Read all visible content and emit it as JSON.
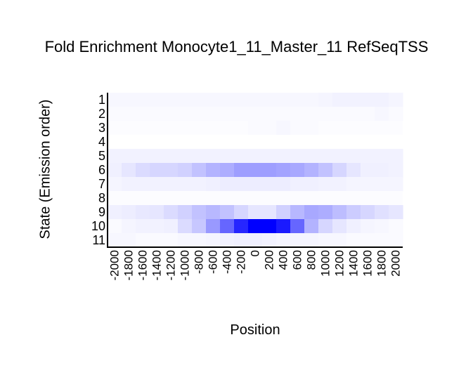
{
  "chart_data": {
    "type": "heatmap",
    "title": "Fold Enrichment Monocyte1_11_Master_11 RefSeqTSS",
    "xlabel": "Position",
    "ylabel": "State (Emission order)",
    "x_ticks": [
      "-2000",
      "-1800",
      "-1600",
      "-1400",
      "-1200",
      "-1000",
      "-800",
      "-600",
      "-400",
      "-200",
      "0",
      "200",
      "400",
      "600",
      "800",
      "1000",
      "1200",
      "1400",
      "1600",
      "1800",
      "2000"
    ],
    "y_ticks": [
      "1",
      "2",
      "3",
      "4",
      "5",
      "6",
      "7",
      "8",
      "9",
      "10",
      "11"
    ],
    "color_low": "#ffffff",
    "color_high": "#0000ff",
    "values": [
      [
        0.03,
        0.03,
        0.03,
        0.03,
        0.03,
        0.03,
        0.03,
        0.03,
        0.03,
        0.03,
        0.03,
        0.03,
        0.03,
        0.03,
        0.03,
        0.04,
        0.05,
        0.05,
        0.05,
        0.05,
        0.04
      ],
      [
        0.02,
        0.02,
        0.02,
        0.02,
        0.02,
        0.02,
        0.02,
        0.02,
        0.02,
        0.02,
        0.02,
        0.02,
        0.02,
        0.02,
        0.02,
        0.02,
        0.02,
        0.02,
        0.02,
        0.03,
        0.02
      ],
      [
        0.01,
        0.01,
        0.01,
        0.01,
        0.01,
        0.01,
        0.01,
        0.01,
        0.01,
        0.01,
        0.02,
        0.02,
        0.03,
        0.02,
        0.02,
        0.01,
        0.01,
        0.01,
        0.01,
        0.01,
        0.01
      ],
      [
        0.0,
        0.0,
        0.0,
        0.0,
        0.0,
        0.0,
        0.0,
        0.0,
        0.0,
        0.0,
        0.0,
        0.0,
        0.0,
        0.0,
        0.0,
        0.0,
        0.0,
        0.0,
        0.0,
        0.0,
        0.0
      ],
      [
        0.05,
        0.05,
        0.05,
        0.05,
        0.05,
        0.05,
        0.05,
        0.05,
        0.05,
        0.05,
        0.05,
        0.05,
        0.05,
        0.05,
        0.05,
        0.05,
        0.05,
        0.05,
        0.05,
        0.05,
        0.05
      ],
      [
        0.06,
        0.1,
        0.14,
        0.16,
        0.16,
        0.18,
        0.24,
        0.3,
        0.32,
        0.38,
        0.38,
        0.38,
        0.36,
        0.34,
        0.3,
        0.24,
        0.16,
        0.1,
        0.06,
        0.06,
        0.05
      ],
      [
        0.04,
        0.05,
        0.05,
        0.05,
        0.05,
        0.05,
        0.05,
        0.06,
        0.07,
        0.07,
        0.07,
        0.07,
        0.07,
        0.06,
        0.06,
        0.05,
        0.05,
        0.04,
        0.04,
        0.04,
        0.04
      ],
      [
        0.01,
        0.01,
        0.01,
        0.01,
        0.01,
        0.01,
        0.01,
        0.01,
        0.01,
        0.01,
        0.01,
        0.01,
        0.01,
        0.01,
        0.01,
        0.01,
        0.01,
        0.01,
        0.01,
        0.01,
        0.01
      ],
      [
        0.06,
        0.07,
        0.09,
        0.1,
        0.14,
        0.18,
        0.24,
        0.28,
        0.24,
        0.16,
        0.1,
        0.1,
        0.18,
        0.28,
        0.34,
        0.32,
        0.26,
        0.2,
        0.16,
        0.12,
        0.1
      ],
      [
        0.02,
        0.04,
        0.05,
        0.05,
        0.06,
        0.14,
        0.22,
        0.4,
        0.6,
        0.85,
        1.0,
        1.0,
        0.9,
        0.6,
        0.3,
        0.16,
        0.1,
        0.06,
        0.04,
        0.03,
        0.02
      ],
      [
        0.03,
        0.03,
        0.02,
        0.02,
        0.02,
        0.03,
        0.03,
        0.04,
        0.05,
        0.06,
        0.06,
        0.05,
        0.04,
        0.04,
        0.04,
        0.03,
        0.03,
        0.02,
        0.02,
        0.02,
        0.02
      ]
    ]
  }
}
